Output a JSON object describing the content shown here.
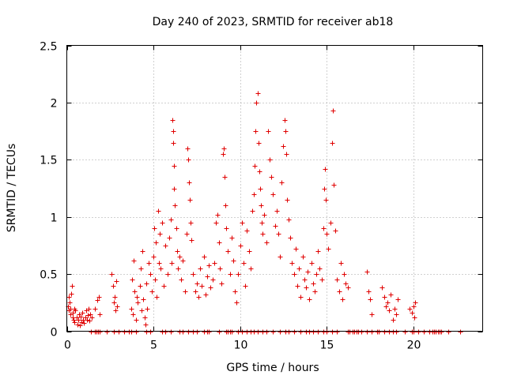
{
  "chart_data": {
    "type": "scatter",
    "title": "Day 240 of 2023, SRMTID for receiver ab18",
    "xlabel": "GPS time / hours",
    "ylabel": "SRMTID / TECUs",
    "xlim": [
      0,
      24
    ],
    "ylim": [
      0,
      2.5
    ],
    "x_ticks": [
      0,
      5,
      10,
      15,
      20
    ],
    "y_ticks": [
      0,
      0.5,
      1,
      1.5,
      2,
      2.5
    ],
    "x_tick_labels": [
      "0",
      "5",
      "10",
      "15",
      "20"
    ],
    "y_tick_labels": [
      "0",
      "0.5",
      "1",
      "1.5",
      "2",
      "2.5"
    ],
    "grid": true,
    "marker": "+",
    "color": "#e00000",
    "series": [
      {
        "name": "SRMTID",
        "points": [
          [
            0.05,
            0.22
          ],
          [
            0.1,
            0.18
          ],
          [
            0.12,
            0.3
          ],
          [
            0.15,
            0.25
          ],
          [
            0.2,
            0.15
          ],
          [
            0.22,
            0.2
          ],
          [
            0.25,
            0.33
          ],
          [
            0.3,
            0.4
          ],
          [
            0.32,
            0.12
          ],
          [
            0.35,
            0.16
          ],
          [
            0.4,
            0.1
          ],
          [
            0.42,
            0.2
          ],
          [
            0.45,
            0.08
          ],
          [
            0.5,
            0.18
          ],
          [
            0.55,
            0.12
          ],
          [
            0.6,
            0.06
          ],
          [
            0.65,
            0.1
          ],
          [
            0.7,
            0.15
          ],
          [
            0.75,
            0.05
          ],
          [
            0.8,
            0.13
          ],
          [
            0.85,
            0.08
          ],
          [
            0.9,
            0.16
          ],
          [
            0.95,
            0.1
          ],
          [
            1.0,
            0.07
          ],
          [
            1.05,
            0.12
          ],
          [
            1.1,
            0.18
          ],
          [
            1.15,
            0.1
          ],
          [
            1.2,
            0.14
          ],
          [
            1.25,
            0.2
          ],
          [
            1.3,
            0.09
          ],
          [
            1.35,
            0.15
          ],
          [
            1.45,
            0.12
          ],
          [
            1.6,
            0.2
          ],
          [
            1.75,
            0.27
          ],
          [
            1.85,
            0.3
          ],
          [
            1.9,
            0.15
          ],
          [
            2.6,
            0.5
          ],
          [
            2.65,
            0.4
          ],
          [
            2.7,
            0.25
          ],
          [
            2.75,
            0.3
          ],
          [
            2.8,
            0.18
          ],
          [
            2.85,
            0.44
          ],
          [
            2.9,
            0.22
          ],
          [
            3.7,
            0.2
          ],
          [
            3.75,
            0.45
          ],
          [
            3.8,
            0.15
          ],
          [
            3.85,
            0.62
          ],
          [
            3.9,
            0.35
          ],
          [
            4.0,
            0.1
          ],
          [
            4.05,
            0.3
          ],
          [
            4.1,
            0.25
          ],
          [
            4.2,
            0.4
          ],
          [
            4.25,
            0.55
          ],
          [
            4.3,
            0.18
          ],
          [
            4.35,
            0.7
          ],
          [
            4.4,
            0.28
          ],
          [
            4.5,
            0.12
          ],
          [
            4.55,
            0.06
          ],
          [
            4.6,
            0.42
          ],
          [
            4.65,
            0.2
          ],
          [
            4.7,
            0.6
          ],
          [
            4.8,
            0.5
          ],
          [
            4.9,
            0.35
          ],
          [
            5.0,
            0.65
          ],
          [
            5.05,
            0.9
          ],
          [
            5.1,
            0.45
          ],
          [
            5.15,
            0.78
          ],
          [
            5.2,
            0.3
          ],
          [
            5.25,
            1.05
          ],
          [
            5.3,
            0.6
          ],
          [
            5.35,
            0.85
          ],
          [
            5.4,
            0.55
          ],
          [
            5.5,
            0.95
          ],
          [
            5.6,
            0.4
          ],
          [
            5.7,
            0.75
          ],
          [
            5.8,
            0.5
          ],
          [
            5.9,
            0.82
          ],
          [
            6.0,
            0.98
          ],
          [
            6.05,
            0.6
          ],
          [
            6.1,
            1.85
          ],
          [
            6.12,
            1.75
          ],
          [
            6.15,
            1.65
          ],
          [
            6.18,
            1.45
          ],
          [
            6.2,
            1.25
          ],
          [
            6.25,
            1.1
          ],
          [
            6.3,
            0.9
          ],
          [
            6.35,
            0.7
          ],
          [
            6.4,
            0.55
          ],
          [
            6.5,
            0.65
          ],
          [
            6.6,
            0.45
          ],
          [
            6.7,
            0.62
          ],
          [
            6.8,
            0.35
          ],
          [
            6.9,
            0.85
          ],
          [
            6.95,
            1.6
          ],
          [
            7.0,
            1.5
          ],
          [
            7.05,
            1.3
          ],
          [
            7.1,
            1.15
          ],
          [
            7.15,
            0.95
          ],
          [
            7.2,
            0.8
          ],
          [
            7.3,
            0.5
          ],
          [
            7.4,
            0.35
          ],
          [
            7.5,
            0.42
          ],
          [
            7.6,
            0.3
          ],
          [
            7.7,
            0.55
          ],
          [
            7.8,
            0.4
          ],
          [
            7.9,
            0.65
          ],
          [
            8.0,
            0.32
          ],
          [
            8.1,
            0.48
          ],
          [
            8.2,
            0.58
          ],
          [
            8.3,
            0.38
          ],
          [
            8.4,
            0.45
          ],
          [
            8.5,
            0.6
          ],
          [
            8.6,
            0.95
          ],
          [
            8.7,
            1.02
          ],
          [
            8.8,
            0.78
          ],
          [
            8.85,
            0.55
          ],
          [
            8.9,
            0.42
          ],
          [
            9.0,
            1.55
          ],
          [
            9.05,
            1.6
          ],
          [
            9.1,
            1.35
          ],
          [
            9.15,
            1.1
          ],
          [
            9.2,
            0.9
          ],
          [
            9.3,
            0.7
          ],
          [
            9.4,
            0.5
          ],
          [
            9.5,
            0.82
          ],
          [
            9.6,
            0.62
          ],
          [
            9.7,
            0.35
          ],
          [
            9.8,
            0.25
          ],
          [
            9.9,
            0.5
          ],
          [
            10.0,
            0.75
          ],
          [
            10.1,
            0.95
          ],
          [
            10.2,
            0.6
          ],
          [
            10.3,
            0.4
          ],
          [
            10.4,
            0.88
          ],
          [
            10.5,
            0.7
          ],
          [
            10.6,
            0.55
          ],
          [
            10.7,
            1.05
          ],
          [
            10.8,
            1.2
          ],
          [
            10.85,
            1.45
          ],
          [
            10.9,
            1.75
          ],
          [
            10.95,
            2.0
          ],
          [
            11.0,
            2.08
          ],
          [
            11.05,
            1.65
          ],
          [
            11.1,
            1.4
          ],
          [
            11.15,
            1.25
          ],
          [
            11.2,
            1.1
          ],
          [
            11.25,
            0.95
          ],
          [
            11.3,
            0.85
          ],
          [
            11.4,
            1.02
          ],
          [
            11.5,
            0.78
          ],
          [
            11.6,
            1.75
          ],
          [
            11.7,
            1.5
          ],
          [
            11.8,
            1.35
          ],
          [
            11.9,
            1.2
          ],
          [
            12.0,
            0.92
          ],
          [
            12.1,
            1.05
          ],
          [
            12.2,
            0.85
          ],
          [
            12.3,
            0.65
          ],
          [
            12.4,
            1.3
          ],
          [
            12.5,
            1.62
          ],
          [
            12.55,
            1.85
          ],
          [
            12.6,
            1.75
          ],
          [
            12.65,
            1.55
          ],
          [
            12.7,
            1.15
          ],
          [
            12.8,
            0.98
          ],
          [
            12.9,
            0.82
          ],
          [
            13.0,
            0.6
          ],
          [
            13.1,
            0.5
          ],
          [
            13.2,
            0.72
          ],
          [
            13.3,
            0.4
          ],
          [
            13.4,
            0.55
          ],
          [
            13.5,
            0.3
          ],
          [
            13.6,
            0.65
          ],
          [
            13.7,
            0.45
          ],
          [
            13.8,
            0.38
          ],
          [
            13.9,
            0.52
          ],
          [
            14.0,
            0.28
          ],
          [
            14.1,
            0.6
          ],
          [
            14.2,
            0.42
          ],
          [
            14.3,
            0.35
          ],
          [
            14.4,
            0.5
          ],
          [
            14.5,
            0.7
          ],
          [
            14.6,
            0.55
          ],
          [
            14.7,
            0.45
          ],
          [
            14.8,
            0.9
          ],
          [
            14.85,
            1.25
          ],
          [
            14.9,
            1.42
          ],
          [
            14.95,
            1.15
          ],
          [
            15.0,
            0.85
          ],
          [
            15.1,
            0.72
          ],
          [
            15.2,
            0.95
          ],
          [
            15.3,
            1.65
          ],
          [
            15.35,
            1.93
          ],
          [
            15.4,
            1.28
          ],
          [
            15.5,
            0.88
          ],
          [
            15.6,
            0.45
          ],
          [
            15.7,
            0.35
          ],
          [
            15.8,
            0.6
          ],
          [
            15.9,
            0.28
          ],
          [
            16.0,
            0.5
          ],
          [
            16.1,
            0.42
          ],
          [
            16.2,
            0.38
          ],
          [
            17.3,
            0.52
          ],
          [
            17.4,
            0.35
          ],
          [
            17.5,
            0.28
          ],
          [
            17.6,
            0.15
          ],
          [
            18.2,
            0.38
          ],
          [
            18.3,
            0.3
          ],
          [
            18.4,
            0.22
          ],
          [
            18.5,
            0.25
          ],
          [
            18.6,
            0.18
          ],
          [
            18.7,
            0.32
          ],
          [
            18.8,
            0.1
          ],
          [
            18.9,
            0.2
          ],
          [
            19.0,
            0.15
          ],
          [
            19.1,
            0.28
          ],
          [
            19.8,
            0.2
          ],
          [
            19.9,
            0.16
          ],
          [
            20.0,
            0.22
          ],
          [
            20.05,
            0.12
          ],
          [
            20.1,
            0.25
          ]
        ],
        "zero_points": [
          1.4,
          1.6,
          1.7,
          1.8,
          1.9,
          2.3,
          2.7,
          3.0,
          3.3,
          3.6,
          3.7,
          4.0,
          4.6,
          4.8,
          5.5,
          5.7,
          6.0,
          6.5,
          6.7,
          7.0,
          7.3,
          7.5,
          7.9,
          8.1,
          8.2,
          8.8,
          9.2,
          9.3,
          9.4,
          9.5,
          9.9,
          10.1,
          10.4,
          10.6,
          10.8,
          11.0,
          11.3,
          11.5,
          11.9,
          12.3,
          12.6,
          12.8,
          13.1,
          13.5,
          13.8,
          14.0,
          14.2,
          14.5,
          14.8,
          15.0,
          15.3,
          15.6,
          16.2,
          16.3,
          16.5,
          16.6,
          16.7,
          16.8,
          17.0,
          17.3,
          17.6,
          17.9,
          18.0,
          18.3,
          18.6,
          18.8,
          19.0,
          19.5,
          19.9,
          20.0,
          20.3,
          20.6,
          20.9,
          21.1,
          21.2,
          21.3,
          21.4,
          21.5,
          21.6,
          22.0,
          22.7
        ]
      }
    ]
  }
}
